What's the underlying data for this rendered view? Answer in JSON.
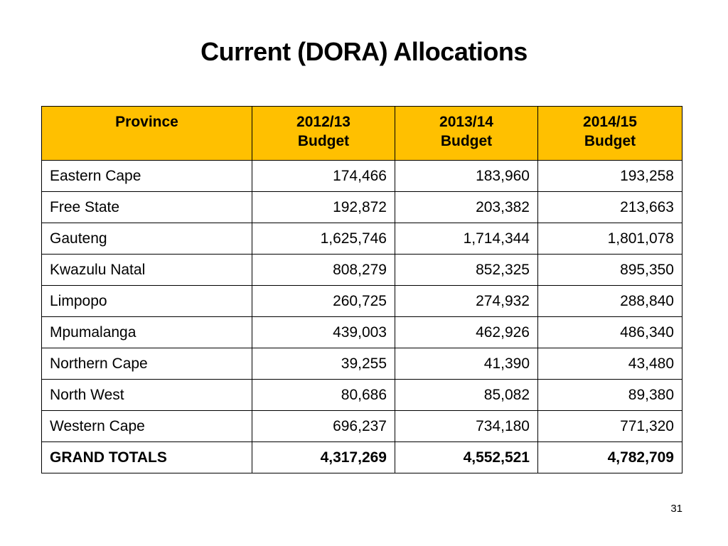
{
  "title": "Current (DORA) Allocations",
  "header_fill": "#FFC000",
  "table": {
    "headers": [
      {
        "line1": "Province",
        "line2": ""
      },
      {
        "line1": "2012/13",
        "line2": "Budget"
      },
      {
        "line1": "2013/14",
        "line2": "Budget"
      },
      {
        "line1": "2014/15",
        "line2": "Budget"
      }
    ],
    "rows": [
      {
        "province": "Eastern Cape",
        "b2012": "174,466",
        "b2013": "183,960",
        "b2014": "193,258"
      },
      {
        "province": "Free State",
        "b2012": "192,872",
        "b2013": "203,382",
        "b2014": "213,663"
      },
      {
        "province": "Gauteng",
        "b2012": "1,625,746",
        "b2013": "1,714,344",
        "b2014": "1,801,078"
      },
      {
        "province": "Kwazulu Natal",
        "b2012": "808,279",
        "b2013": "852,325",
        "b2014": "895,350"
      },
      {
        "province": "Limpopo",
        "b2012": "260,725",
        "b2013": "274,932",
        "b2014": "288,840"
      },
      {
        "province": "Mpumalanga",
        "b2012": "439,003",
        "b2013": "462,926",
        "b2014": "486,340"
      },
      {
        "province": "Northern Cape",
        "b2012": "39,255",
        "b2013": "41,390",
        "b2014": "43,480"
      },
      {
        "province": "North West",
        "b2012": "80,686",
        "b2013": "85,082",
        "b2014": "89,380"
      },
      {
        "province": "Western Cape",
        "b2012": "696,237",
        "b2013": "734,180",
        "b2014": "771,320"
      }
    ],
    "totals": {
      "label": "GRAND TOTALS",
      "b2012": "4,317,269",
      "b2013": "4,552,521",
      "b2014": "4,782,709"
    }
  },
  "page_number": "31"
}
